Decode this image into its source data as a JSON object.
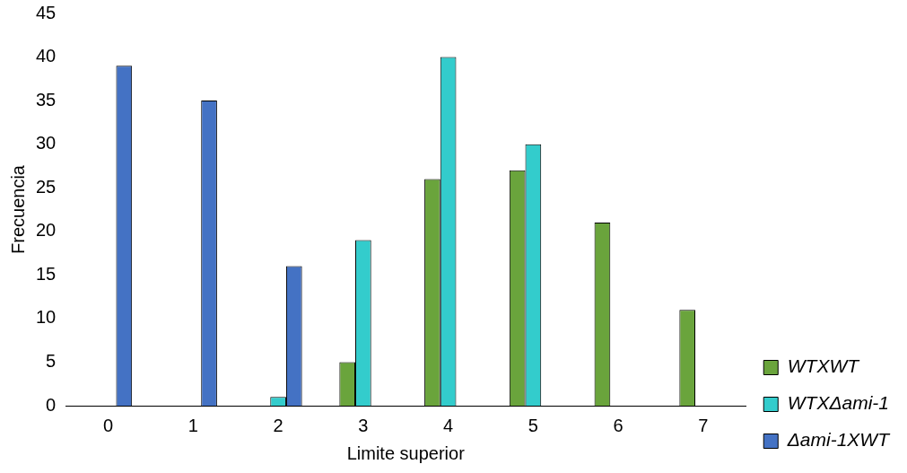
{
  "chart_data": {
    "type": "bar",
    "xlabel": "Limite superior",
    "ylabel": "Frecuencia",
    "categories": [
      "0",
      "1",
      "2",
      "3",
      "4",
      "5",
      "6",
      "7"
    ],
    "series": [
      {
        "name": "WTXWT",
        "color": "#6aa43c",
        "values": [
          0,
          0,
          0,
          5,
          26,
          27,
          21,
          11
        ]
      },
      {
        "name": "WTXΔami-1",
        "color": "#33cccc",
        "values": [
          0,
          0,
          1,
          19,
          40,
          30,
          0,
          0
        ]
      },
      {
        "name": "Δami-1XWT",
        "color": "#4472c4",
        "values": [
          39,
          35,
          16,
          0,
          0,
          0,
          0,
          0
        ]
      }
    ],
    "ylim": [
      0,
      45
    ],
    "yticks": [
      0,
      5,
      10,
      15,
      20,
      25,
      30,
      35,
      40,
      45
    ],
    "grid": false,
    "legend": "right"
  }
}
